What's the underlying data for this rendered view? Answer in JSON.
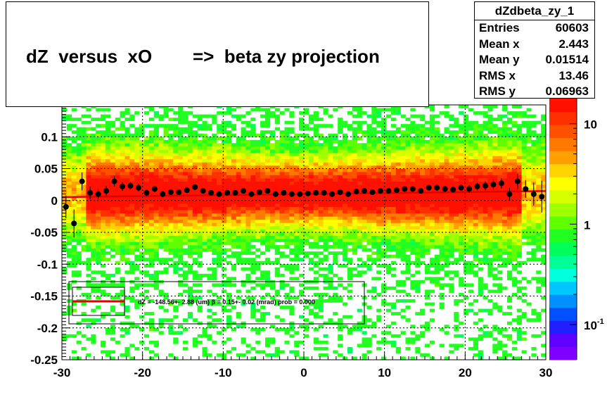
{
  "title": "dZ  versus  xO        =>  beta zy projection",
  "stats": {
    "name": "dZdbeta_zy_1",
    "rows": [
      {
        "key": "Entries",
        "value": "60603"
      },
      {
        "key": "Mean x",
        "value": "2.443"
      },
      {
        "key": "Mean y",
        "value": "0.01514"
      },
      {
        "key": "RMS x",
        "value": "13.46"
      },
      {
        "key": "RMS y",
        "value": "0.06963"
      }
    ]
  },
  "legend": {
    "fit_text": "dZ = -148.56+- 2.88 (um) β =    0.15+- 0.02 (mrad) prob = 0.000"
  },
  "colors": {
    "fit_line": "#e00000",
    "points": "#000000",
    "palette": [
      "#8000ff",
      "#6000ff",
      "#2020ff",
      "#0050ff",
      "#0090ff",
      "#00c8ff",
      "#00ffdc",
      "#00ff96",
      "#00ff5a",
      "#20ff20",
      "#60ff00",
      "#a0ff00",
      "#d8ff00",
      "#ffff00",
      "#ffd200",
      "#ffa000",
      "#ff7800",
      "#ff5000",
      "#ff3000",
      "#ff1000"
    ]
  },
  "chart_data": {
    "type": "heatmap",
    "x_range": [
      -30,
      30
    ],
    "y_range": [
      -0.25,
      0.15
    ],
    "x_ticks": [
      "-30",
      "-20",
      "-10",
      "0",
      "10",
      "20",
      "30"
    ],
    "y_ticks": [
      "-0.25",
      "-0.2",
      "-0.15",
      "-0.1",
      "-0.05",
      "0",
      "0.05",
      "0.1"
    ],
    "z_scale": "log",
    "z_ticks": [
      {
        "label": "10",
        "exp": "-1",
        "value": 0.1
      },
      {
        "label": "1",
        "exp": "",
        "value": 1
      },
      {
        "label": "10",
        "exp": "",
        "value": 10
      }
    ],
    "grid": true,
    "fit": {
      "intercept": 0.01,
      "slope": 0.00016
    },
    "profile_points": {
      "x": [
        -29.5,
        -28.5,
        -27.5,
        -26.5,
        -25.5,
        -24.5,
        -23.5,
        -22.5,
        -21.5,
        -20.5,
        -19.5,
        -18.5,
        -17.5,
        -16.5,
        -15.5,
        -14.5,
        -13.5,
        -12.5,
        -11.5,
        -10.5,
        -9.5,
        -8.5,
        -7.5,
        -6.5,
        -5.5,
        -4.5,
        -3.5,
        -2.5,
        -1.5,
        -0.5,
        0.5,
        1.5,
        2.5,
        3.5,
        4.5,
        5.5,
        6.5,
        7.5,
        8.5,
        9.5,
        10.5,
        11.5,
        12.5,
        13.5,
        14.5,
        15.5,
        16.5,
        17.5,
        18.5,
        19.5,
        20.5,
        21.5,
        22.5,
        23.5,
        24.5,
        25.5,
        26.5,
        27.5,
        28.5,
        29.5
      ],
      "y": [
        -0.01,
        -0.036,
        0.03,
        0.012,
        0.01,
        0.015,
        0.03,
        0.022,
        0.023,
        0.02,
        0.012,
        0.018,
        0.01,
        0.013,
        0.013,
        0.016,
        0.021,
        0.015,
        0.012,
        0.01,
        0.012,
        0.012,
        0.015,
        0.01,
        0.013,
        0.015,
        0.01,
        0.012,
        0.01,
        0.01,
        0.011,
        0.012,
        0.012,
        0.01,
        0.013,
        0.01,
        0.014,
        0.015,
        0.013,
        0.015,
        0.015,
        0.016,
        0.018,
        0.018,
        0.015,
        0.02,
        0.02,
        0.018,
        0.017,
        0.02,
        0.018,
        0.022,
        0.023,
        0.025,
        0.027,
        0.01,
        0.03,
        0.018,
        0.01,
        0.006
      ],
      "err": [
        0.018,
        0.022,
        0.014,
        0.01,
        0.008,
        0.008,
        0.008,
        0.007,
        0.006,
        0.006,
        0.005,
        0.005,
        0.005,
        0.004,
        0.004,
        0.004,
        0.004,
        0.004,
        0.004,
        0.004,
        0.003,
        0.003,
        0.003,
        0.003,
        0.003,
        0.003,
        0.003,
        0.003,
        0.003,
        0.003,
        0.003,
        0.003,
        0.003,
        0.003,
        0.003,
        0.003,
        0.003,
        0.003,
        0.003,
        0.003,
        0.004,
        0.004,
        0.004,
        0.004,
        0.004,
        0.004,
        0.005,
        0.005,
        0.005,
        0.005,
        0.006,
        0.006,
        0.007,
        0.008,
        0.008,
        0.01,
        0.012,
        0.014,
        0.018,
        0.025
      ]
    }
  }
}
